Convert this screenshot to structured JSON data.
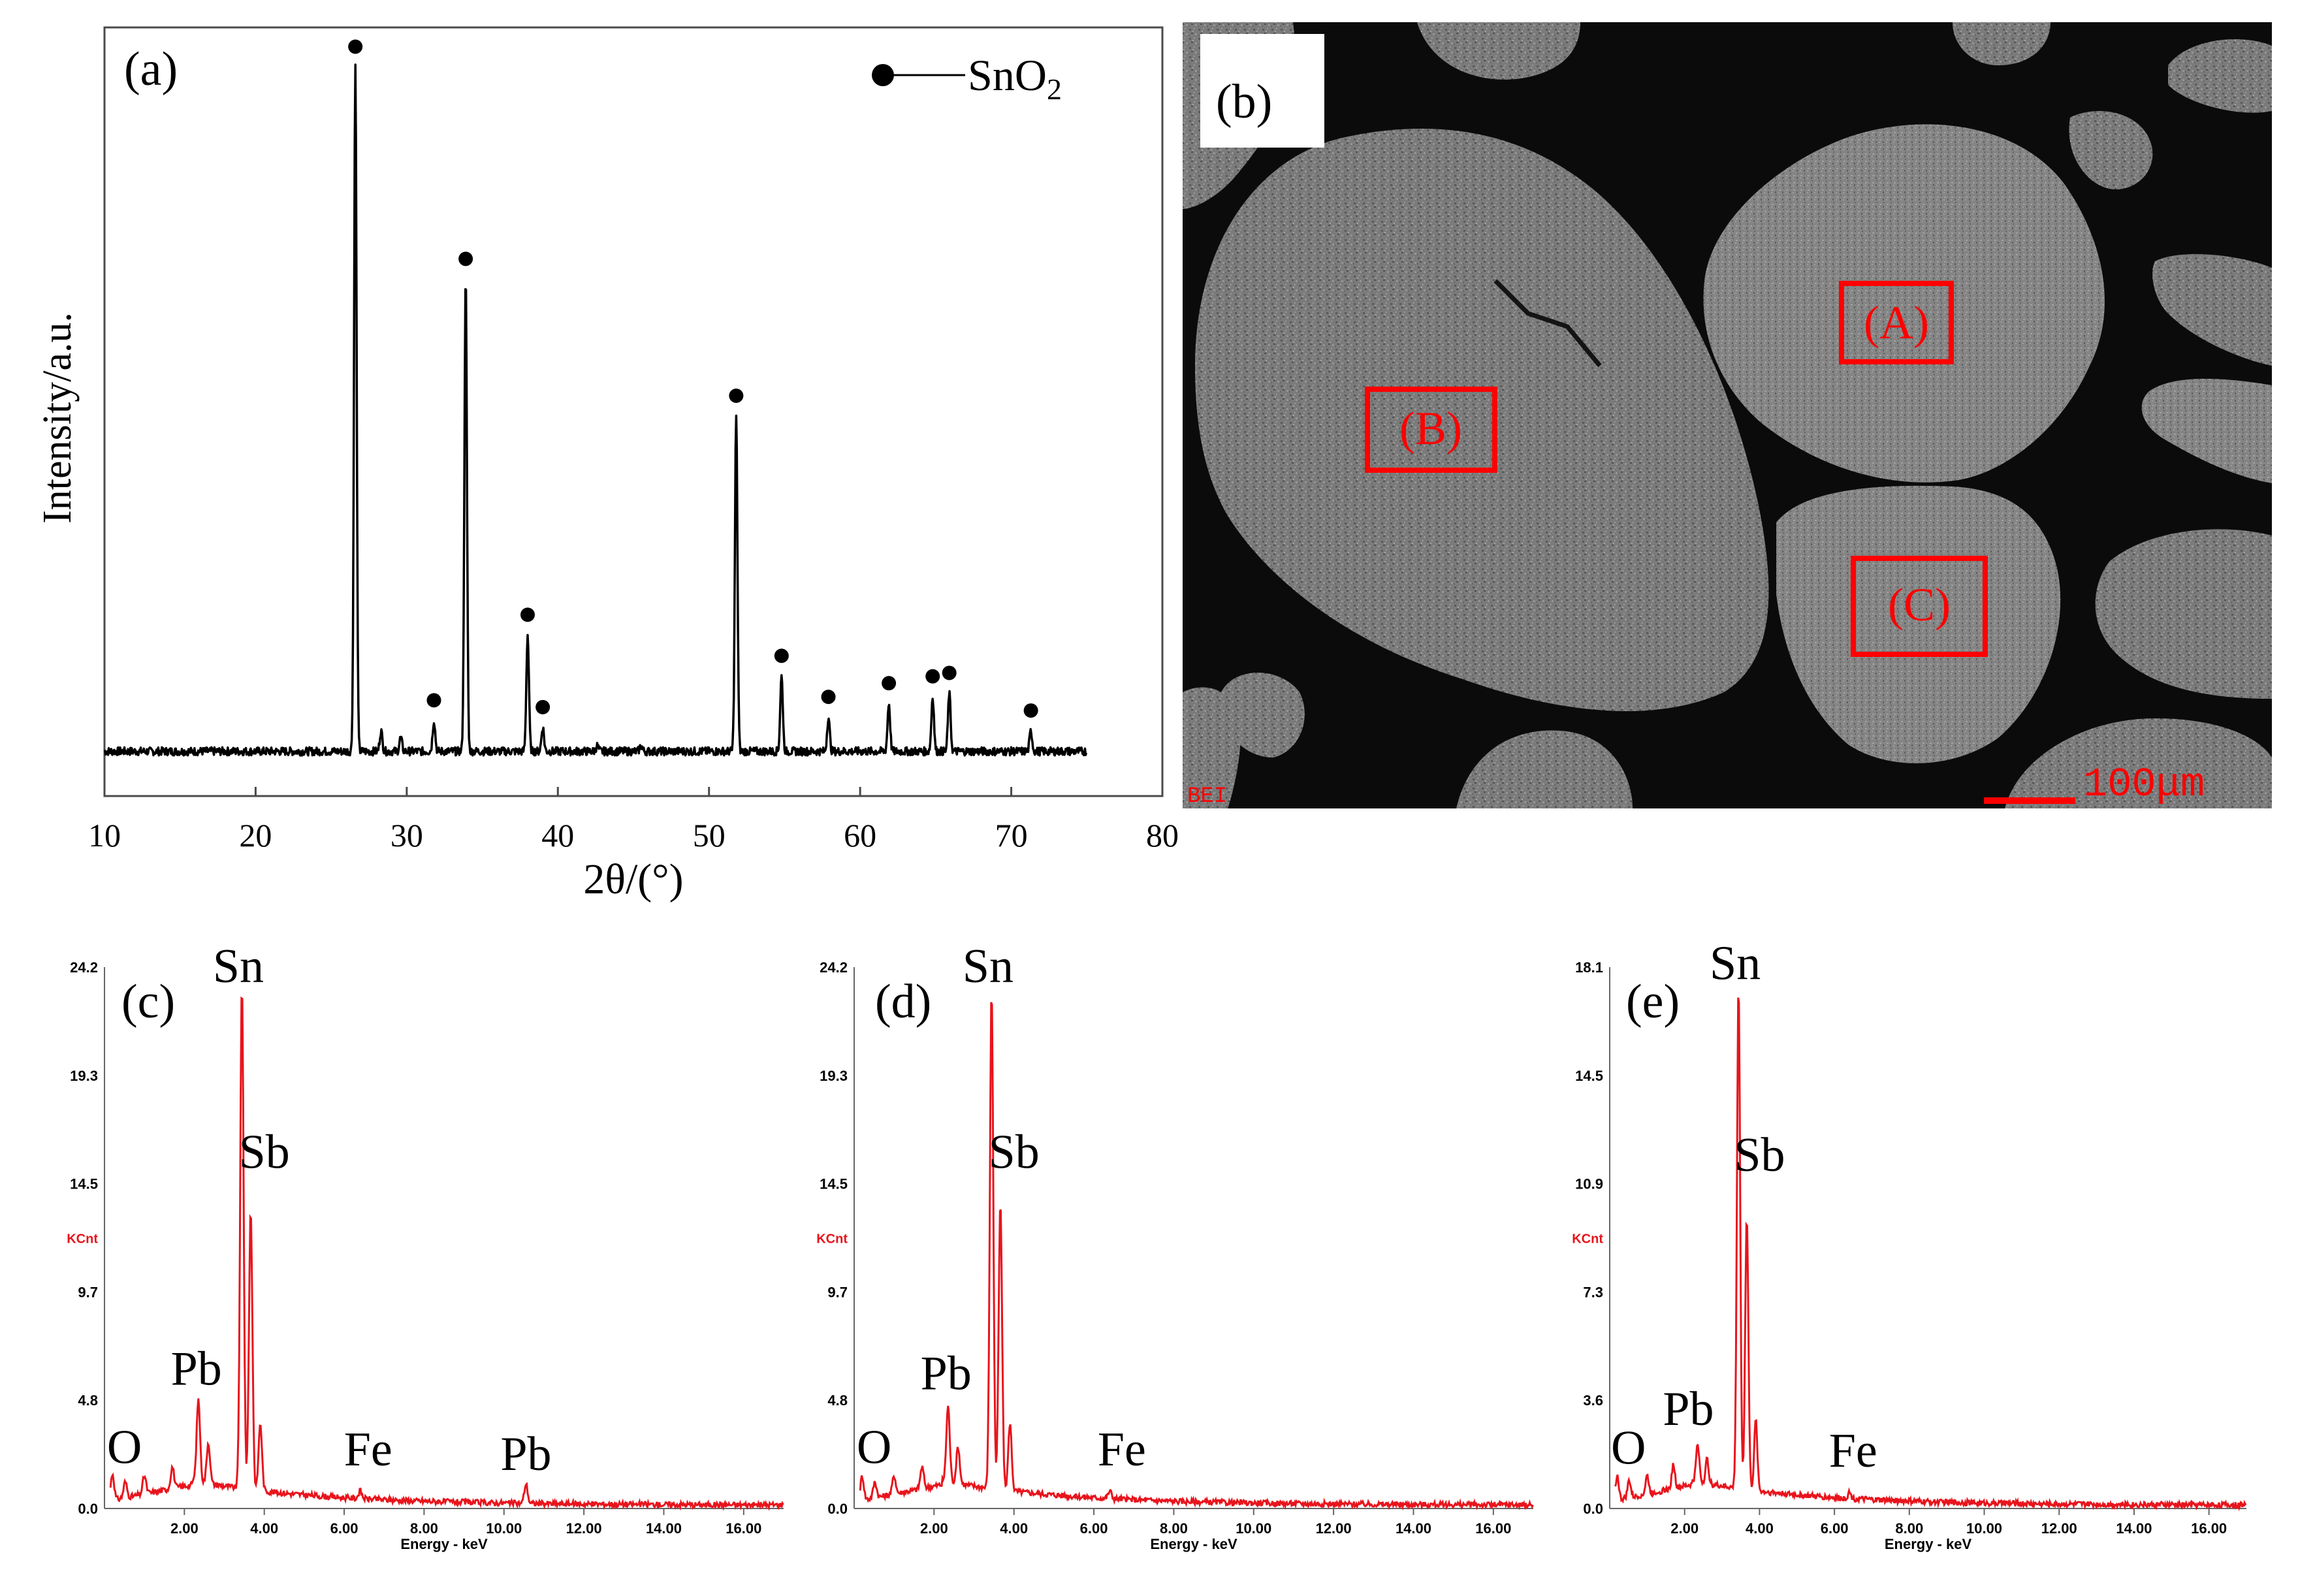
{
  "panels": {
    "a": {
      "label": "(a)"
    },
    "b": {
      "label": "(b)",
      "mode_text": "BEI",
      "scale_label": "100μm",
      "regions": [
        {
          "id": "A",
          "label": "(A)"
        },
        {
          "id": "B",
          "label": "(B)"
        },
        {
          "id": "C",
          "label": "(C)"
        }
      ]
    },
    "c": {
      "label": "(c)"
    },
    "d": {
      "label": "(d)"
    },
    "e": {
      "label": "(e)"
    }
  },
  "colors": {
    "xrd_line": "#000000",
    "eds_line": "#e8141c",
    "eds_axis_text": "#000000",
    "eds_unit_text": "#e8141c",
    "region_box": "#ff0000",
    "sem_background": "#0b0b0b",
    "sem_particle": "#7a7a7a"
  },
  "chart_data": [
    {
      "id": "a",
      "type": "line",
      "xlabel": "2θ/(°)",
      "ylabel": "Intensity/a.u.",
      "xlim": [
        10,
        80
      ],
      "x_ticks": [
        "10",
        "20",
        "30",
        "40",
        "50",
        "60",
        "70",
        "80"
      ],
      "x_tick_values": [
        10,
        20,
        30,
        40,
        50,
        60,
        70,
        80
      ],
      "y_ticks": [],
      "data_range": [
        10,
        75
      ],
      "legend": {
        "label_main": "SnO",
        "label_sub": "2",
        "position": "top-right",
        "marker": "filled-circle"
      },
      "peaks": [
        {
          "x": 26.6,
          "intensity": 100,
          "marked": true
        },
        {
          "x": 28.3,
          "intensity": 3,
          "marked": false
        },
        {
          "x": 29.6,
          "intensity": 2,
          "marked": false
        },
        {
          "x": 31.8,
          "intensity": 4.5,
          "marked": true
        },
        {
          "x": 33.9,
          "intensity": 69,
          "marked": true
        },
        {
          "x": 38.0,
          "intensity": 17,
          "marked": true
        },
        {
          "x": 39.0,
          "intensity": 3.5,
          "marked": true
        },
        {
          "x": 42.6,
          "intensity": 0.8,
          "marked": false
        },
        {
          "x": 45.5,
          "intensity": 0.8,
          "marked": false
        },
        {
          "x": 51.8,
          "intensity": 49,
          "marked": true
        },
        {
          "x": 54.8,
          "intensity": 11,
          "marked": true
        },
        {
          "x": 57.9,
          "intensity": 5,
          "marked": true
        },
        {
          "x": 61.9,
          "intensity": 7,
          "marked": true
        },
        {
          "x": 64.8,
          "intensity": 8,
          "marked": true
        },
        {
          "x": 65.9,
          "intensity": 8.5,
          "marked": true
        },
        {
          "x": 71.3,
          "intensity": 3,
          "marked": true
        }
      ]
    },
    {
      "id": "c",
      "type": "line",
      "xlabel": "Energy - keV",
      "ylabel": "KCnt",
      "xlim": [
        0,
        17
      ],
      "x_ticks": [
        "2.00",
        "4.00",
        "6.00",
        "8.00",
        "10.00",
        "12.00",
        "14.00",
        "16.00"
      ],
      "x_tick_values": [
        2,
        4,
        6,
        8,
        10,
        12,
        14,
        16
      ],
      "ylim": [
        0,
        24.2
      ],
      "y_ticks": [
        "0.0",
        "4.8",
        "9.7",
        "14.5",
        "19.3",
        "24.2"
      ],
      "y_tick_values": [
        0,
        4.84,
        9.68,
        14.52,
        19.36,
        24.2
      ],
      "peaks": [
        {
          "x": 0.2,
          "y": 1.4
        },
        {
          "x": 0.52,
          "y": 1.0
        },
        {
          "x": 1.0,
          "y": 1.2
        },
        {
          "x": 1.7,
          "y": 1.5
        },
        {
          "x": 2.35,
          "y": 4.4
        },
        {
          "x": 2.6,
          "y": 2.5
        },
        {
          "x": 3.44,
          "y": 23.0
        },
        {
          "x": 3.66,
          "y": 13.0
        },
        {
          "x": 3.9,
          "y": 3.5
        },
        {
          "x": 6.4,
          "y": 0.6
        },
        {
          "x": 10.55,
          "y": 1.0
        }
      ],
      "element_labels": [
        {
          "text": "O",
          "x": 0.5,
          "y": 1.5
        },
        {
          "text": "Pb",
          "x": 2.3,
          "y": 5.0
        },
        {
          "text": "Sn",
          "x": 3.35,
          "y": 23.0
        },
        {
          "text": "Sb",
          "x": 4.0,
          "y": 14.7
        },
        {
          "text": "Fe",
          "x": 6.6,
          "y": 1.4
        },
        {
          "text": "Pb",
          "x": 10.55,
          "y": 1.2
        }
      ]
    },
    {
      "id": "d",
      "type": "line",
      "xlabel": "Energy - keV",
      "ylabel": "KCnt",
      "xlim": [
        0,
        17
      ],
      "x_ticks": [
        "2.00",
        "4.00",
        "6.00",
        "8.00",
        "10.00",
        "12.00",
        "14.00",
        "16.00"
      ],
      "x_tick_values": [
        2,
        4,
        6,
        8,
        10,
        12,
        14,
        16
      ],
      "ylim": [
        0,
        24.2
      ],
      "y_ticks": [
        "0.0",
        "4.8",
        "9.7",
        "14.5",
        "19.3",
        "24.2"
      ],
      "y_tick_values": [
        0,
        4.84,
        9.68,
        14.52,
        19.36,
        24.2
      ],
      "peaks": [
        {
          "x": 0.2,
          "y": 1.3
        },
        {
          "x": 0.52,
          "y": 1.0
        },
        {
          "x": 1.0,
          "y": 1.2
        },
        {
          "x": 1.7,
          "y": 1.5
        },
        {
          "x": 2.35,
          "y": 4.1
        },
        {
          "x": 2.6,
          "y": 2.3
        },
        {
          "x": 3.44,
          "y": 22.8
        },
        {
          "x": 3.66,
          "y": 13.3
        },
        {
          "x": 3.9,
          "y": 3.5
        },
        {
          "x": 6.4,
          "y": 0.6
        }
      ],
      "element_labels": [
        {
          "text": "O",
          "x": 0.5,
          "y": 1.5
        },
        {
          "text": "Pb",
          "x": 2.3,
          "y": 4.8
        },
        {
          "text": "Sn",
          "x": 3.35,
          "y": 23.0
        },
        {
          "text": "Sb",
          "x": 4.0,
          "y": 14.7
        },
        {
          "text": "Fe",
          "x": 6.7,
          "y": 1.4
        }
      ]
    },
    {
      "id": "e",
      "type": "line",
      "xlabel": "Energy - keV",
      "ylabel": "KCnt",
      "xlim": [
        0,
        17
      ],
      "x_ticks": [
        "2.00",
        "4.00",
        "6.00",
        "8.00",
        "10.00",
        "12.00",
        "14.00",
        "16.00"
      ],
      "x_tick_values": [
        2,
        4,
        6,
        8,
        10,
        12,
        14,
        16
      ],
      "ylim": [
        0,
        18.1
      ],
      "y_ticks": [
        "0.0",
        "3.6",
        "7.3",
        "10.9",
        "14.5",
        "18.1"
      ],
      "y_tick_values": [
        0,
        3.62,
        7.24,
        10.86,
        14.48,
        18.1
      ],
      "peaks": [
        {
          "x": 0.2,
          "y": 1.0
        },
        {
          "x": 0.52,
          "y": 0.8
        },
        {
          "x": 1.0,
          "y": 0.9
        },
        {
          "x": 1.7,
          "y": 1.2
        },
        {
          "x": 2.35,
          "y": 1.8
        },
        {
          "x": 2.6,
          "y": 1.3
        },
        {
          "x": 3.44,
          "y": 17.2
        },
        {
          "x": 3.66,
          "y": 9.5
        },
        {
          "x": 3.9,
          "y": 2.7
        },
        {
          "x": 6.4,
          "y": 0.4
        }
      ],
      "element_labels": [
        {
          "text": "O",
          "x": 0.5,
          "y": 1.1
        },
        {
          "text": "Pb",
          "x": 2.1,
          "y": 2.4
        },
        {
          "text": "Sn",
          "x": 3.35,
          "y": 17.3
        },
        {
          "text": "Sb",
          "x": 4.0,
          "y": 10.9
        },
        {
          "text": "Fe",
          "x": 6.5,
          "y": 1.0
        }
      ]
    }
  ]
}
